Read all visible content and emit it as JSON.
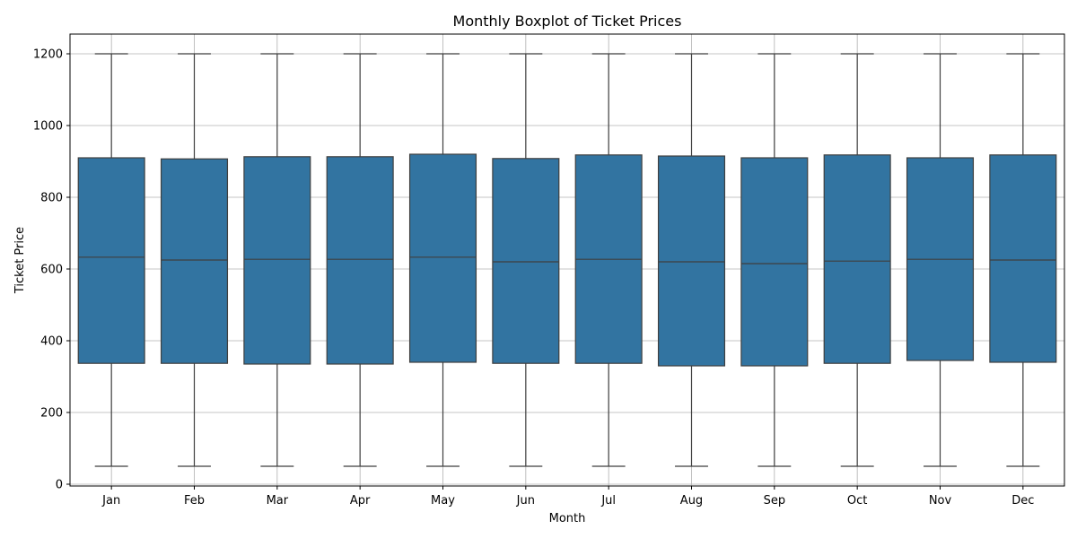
{
  "chart_data": {
    "type": "box",
    "title": "Monthly Boxplot of Ticket Prices",
    "xlabel": "Month",
    "ylabel": "Ticket Price",
    "ylim": [
      -5,
      1255
    ],
    "yticks": [
      0,
      200,
      400,
      600,
      800,
      1000,
      1200
    ],
    "grid": true,
    "box_color": "#3274a1",
    "line_color": "#3f3f3f",
    "grid_color": "#b0b0b0",
    "categories": [
      "Jan",
      "Feb",
      "Mar",
      "Apr",
      "May",
      "Jun",
      "Jul",
      "Aug",
      "Sep",
      "Oct",
      "Nov",
      "Dec"
    ],
    "boxes": [
      {
        "min": 50,
        "q1": 337,
        "median": 633,
        "q3": 910,
        "max": 1200
      },
      {
        "min": 50,
        "q1": 337,
        "median": 625,
        "q3": 907,
        "max": 1200
      },
      {
        "min": 50,
        "q1": 335,
        "median": 627,
        "q3": 913,
        "max": 1200
      },
      {
        "min": 50,
        "q1": 335,
        "median": 627,
        "q3": 913,
        "max": 1200
      },
      {
        "min": 50,
        "q1": 340,
        "median": 633,
        "q3": 920,
        "max": 1200
      },
      {
        "min": 50,
        "q1": 337,
        "median": 620,
        "q3": 908,
        "max": 1200
      },
      {
        "min": 50,
        "q1": 337,
        "median": 627,
        "q3": 918,
        "max": 1200
      },
      {
        "min": 50,
        "q1": 330,
        "median": 620,
        "q3": 915,
        "max": 1200
      },
      {
        "min": 50,
        "q1": 330,
        "median": 615,
        "q3": 910,
        "max": 1200
      },
      {
        "min": 50,
        "q1": 337,
        "median": 622,
        "q3": 918,
        "max": 1200
      },
      {
        "min": 50,
        "q1": 345,
        "median": 627,
        "q3": 910,
        "max": 1200
      },
      {
        "min": 50,
        "q1": 340,
        "median": 625,
        "q3": 918,
        "max": 1200
      }
    ]
  }
}
